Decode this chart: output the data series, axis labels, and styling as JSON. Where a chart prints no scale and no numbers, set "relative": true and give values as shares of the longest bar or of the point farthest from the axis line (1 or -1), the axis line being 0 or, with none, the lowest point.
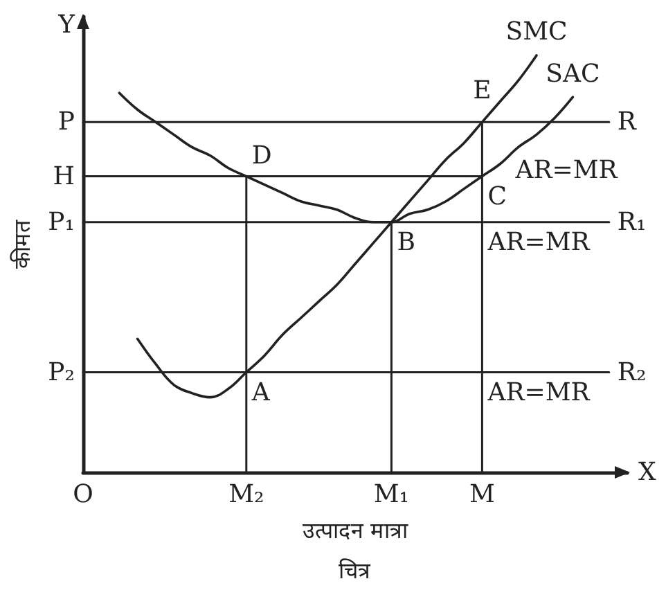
{
  "chart_data": {
    "type": "line",
    "relative": true,
    "xlabel": "उत्पादन मात्रा",
    "ylabel": "कीमत",
    "categories": [
      "O",
      null,
      null,
      null,
      null,
      null,
      null,
      null,
      null,
      "M₂",
      null,
      null,
      null,
      null,
      null,
      null,
      null,
      "M₁",
      null,
      null,
      null,
      null,
      "M",
      null,
      null,
      null,
      null,
      null,
      null,
      null,
      null
    ],
    "series": [
      {
        "name": "SMC",
        "color": "#222222",
        "values": [
          null,
          null,
          null,
          0.32,
          0.26,
          0.21,
          0.19,
          0.18,
          0.2,
          0.24,
          0.28,
          0.33,
          0.37,
          0.41,
          0.45,
          0.5,
          0.55,
          0.6,
          0.65,
          0.7,
          0.75,
          0.79,
          0.84,
          0.89,
          0.94,
          1.0,
          null,
          null,
          null,
          null,
          null
        ]
      },
      {
        "name": "SAC",
        "color": "#222222",
        "values": [
          null,
          null,
          0.91,
          0.87,
          0.84,
          0.81,
          0.78,
          0.76,
          0.73,
          0.71,
          0.69,
          0.67,
          0.65,
          0.64,
          0.63,
          0.61,
          0.6,
          0.6,
          0.62,
          0.63,
          0.65,
          0.68,
          0.71,
          0.74,
          0.78,
          0.81,
          0.85,
          0.9,
          null,
          null,
          null
        ]
      },
      {
        "name": "R",
        "color": "#222222",
        "values": [
          0.84,
          0.84,
          0.84,
          0.84,
          0.84,
          0.84,
          0.84,
          0.84,
          0.84,
          0.84,
          0.84,
          0.84,
          0.84,
          0.84,
          0.84,
          0.84,
          0.84,
          0.84,
          0.84,
          0.84,
          0.84,
          0.84,
          0.84,
          0.84,
          0.84,
          0.84,
          0.84,
          0.84,
          0.84,
          0.84,
          null
        ]
      },
      {
        "color": "#222222",
        "values": [
          0.71,
          0.71,
          0.71,
          0.71,
          0.71,
          0.71,
          0.71,
          0.71,
          0.71,
          0.71,
          0.71,
          0.71,
          0.71,
          0.71,
          0.71,
          0.71,
          0.71,
          0.71,
          0.71,
          0.71,
          0.71,
          0.71,
          0.71,
          null,
          null,
          null,
          null,
          null,
          null,
          null,
          null
        ]
      },
      {
        "name": "R₁",
        "color": "#222222",
        "values": [
          0.6,
          0.6,
          0.6,
          0.6,
          0.6,
          0.6,
          0.6,
          0.6,
          0.6,
          0.6,
          0.6,
          0.6,
          0.6,
          0.6,
          0.6,
          0.6,
          0.6,
          0.6,
          0.6,
          0.6,
          0.6,
          0.6,
          0.6,
          0.6,
          0.6,
          0.6,
          0.6,
          0.6,
          0.6,
          0.6,
          null
        ]
      },
      {
        "name": "R₂",
        "color": "#222222",
        "values": [
          0.24,
          0.24,
          0.24,
          0.24,
          0.24,
          0.24,
          0.24,
          0.24,
          0.24,
          0.24,
          0.24,
          0.24,
          0.24,
          0.24,
          0.24,
          0.24,
          0.24,
          0.24,
          0.24,
          0.24,
          0.24,
          0.24,
          0.24,
          0.24,
          0.24,
          0.24,
          0.24,
          0.24,
          0.24,
          0.24,
          null
        ]
      },
      {
        "color": "#222222",
        "x": [
          "M₂",
          "M₂"
        ],
        "values": [
          0,
          0.71
        ]
      },
      {
        "color": "#222222",
        "x": [
          "M₁",
          "M₁"
        ],
        "values": [
          0,
          0.6
        ]
      },
      {
        "color": "#222222",
        "x": [
          "M",
          "M"
        ],
        "values": [
          0,
          0.84
        ]
      }
    ],
    "annotations": [
      {
        "text": "P",
        "x": "O",
        "y": 0.84
      },
      {
        "text": "H",
        "x": "O",
        "y": 0.71
      },
      {
        "text": "P₁",
        "x": "O",
        "y": 0.6
      },
      {
        "text": "P₂",
        "x": "O",
        "y": 0.24
      },
      {
        "text": "A",
        "x": "M₂",
        "y": 0.24
      },
      {
        "text": "B",
        "x": "M₁",
        "y": 0.6
      },
      {
        "text": "C",
        "x": "M",
        "y": 0.71
      },
      {
        "text": "D",
        "x": "M₂",
        "y": 0.71
      },
      {
        "text": "E",
        "x": "M",
        "y": 0.84
      },
      {
        "text": "AR=MR",
        "x": "M",
        "y": 0.84
      },
      {
        "text": "AR=MR",
        "x": "M",
        "y": 0.6
      },
      {
        "text": "AR=MR",
        "x": "M",
        "y": 0.24
      },
      "Y",
      "X",
      "चित्र"
    ],
    "marker": "none",
    "grid": false,
    "legend": false
  }
}
